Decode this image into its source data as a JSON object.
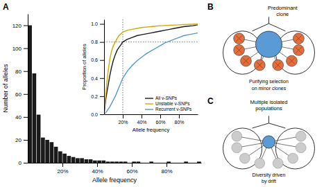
{
  "chart_data": [
    {
      "type": "histogram",
      "title": "A",
      "bins": [
        0,
        2.5,
        5,
        7.5,
        10,
        12.5,
        15,
        17.5,
        20,
        22.5,
        25,
        27.5,
        30,
        32.5,
        35,
        37.5,
        40,
        42.5,
        45,
        47.5,
        50,
        52.5,
        55,
        57.5,
        60,
        62.5,
        65,
        67.5,
        70,
        72.5,
        75,
        77.5,
        80,
        82.5,
        85,
        87.5,
        90,
        92.5,
        95,
        97.5,
        100
      ],
      "values": [
        120,
        78,
        42,
        22,
        20,
        18,
        14,
        10,
        8,
        6,
        5,
        4,
        4,
        3,
        3,
        2,
        2,
        2,
        1,
        1,
        1,
        1,
        1,
        0,
        1,
        1,
        0,
        0,
        1,
        0,
        0,
        0,
        1,
        0,
        0,
        0,
        1,
        0,
        0,
        1
      ],
      "color": "#1a1a1a",
      "xlabel": "Allele frequency",
      "ylabel": "Number of alleles",
      "xlim": [
        0,
        100
      ],
      "ylim": [
        0,
        130
      ],
      "xticks": [
        {
          "value": 20,
          "label": "20%"
        },
        {
          "value": 40,
          "label": "40%"
        },
        {
          "value": 60,
          "label": "60%"
        },
        {
          "value": 80,
          "label": "80%"
        }
      ],
      "yticks": [
        0,
        20,
        40,
        60,
        80,
        100,
        120
      ]
    },
    {
      "type": "line",
      "x": [
        0,
        2,
        4,
        6,
        8,
        10,
        12,
        14,
        16,
        18,
        20,
        25,
        30,
        35,
        40,
        45,
        50,
        55,
        60,
        65,
        70,
        75,
        80,
        85,
        90,
        95,
        100
      ],
      "series": [
        {
          "name": "All v-SNPs",
          "color": "#1a1a1a",
          "values": [
            0.0,
            0.18,
            0.3,
            0.42,
            0.52,
            0.6,
            0.66,
            0.71,
            0.74,
            0.77,
            0.8,
            0.83,
            0.85,
            0.87,
            0.88,
            0.89,
            0.9,
            0.91,
            0.92,
            0.93,
            0.94,
            0.95,
            0.96,
            0.97,
            0.975,
            0.98,
            0.99
          ]
        },
        {
          "name": "Unstable v-SNPs",
          "color": "#d4a800",
          "values": [
            0.0,
            0.25,
            0.45,
            0.6,
            0.7,
            0.76,
            0.8,
            0.84,
            0.87,
            0.89,
            0.91,
            0.93,
            0.94,
            0.95,
            0.96,
            0.965,
            0.97,
            0.975,
            0.98,
            0.982,
            0.985,
            0.988,
            0.99,
            0.992,
            0.994,
            0.996,
            0.998
          ]
        },
        {
          "name": "Recurrent v-SNPs",
          "color": "#5599cc",
          "values": [
            0.0,
            0.02,
            0.05,
            0.08,
            0.12,
            0.16,
            0.2,
            0.25,
            0.3,
            0.35,
            0.4,
            0.48,
            0.54,
            0.59,
            0.63,
            0.67,
            0.7,
            0.73,
            0.76,
            0.79,
            0.81,
            0.83,
            0.85,
            0.87,
            0.88,
            0.89,
            0.9
          ]
        }
      ],
      "xlabel": "Allele frequency",
      "ylabel": "Proportion of alleles",
      "xlim": [
        0,
        100
      ],
      "ylim": [
        0,
        1.05
      ],
      "xticks": [
        {
          "value": 20,
          "label": "20%"
        },
        {
          "value": 40,
          "label": "40%"
        },
        {
          "value": 60,
          "label": "60%"
        },
        {
          "value": 80,
          "label": "80%"
        }
      ],
      "yticks": [
        {
          "value": 0.0,
          "label": "0.0"
        },
        0.2,
        0.4,
        0.6,
        0.8,
        {
          "value": 1.0,
          "label": "1.0"
        }
      ],
      "vline": 20,
      "hline": 0.8,
      "legend": "lower right"
    },
    {
      "type": "diagram",
      "title": "B",
      "annotations": [
        "Predominant",
        "clone",
        "Purifying selection",
        "on minor clones"
      ],
      "colors": [
        "#5b9bd5",
        "#e07040"
      ]
    },
    {
      "type": "diagram",
      "title": "C",
      "annotations": [
        "Multiple isolated",
        "populations",
        "Diversity driven",
        "by drift"
      ],
      "colors": [
        "#5b9bd5",
        "#cccccc"
      ]
    }
  ]
}
